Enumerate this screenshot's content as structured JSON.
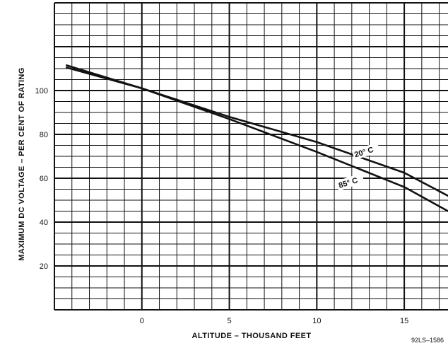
{
  "chart_data": {
    "type": "line",
    "title": "",
    "xlabel": "ALTITUDE – THOUSAND FEET",
    "ylabel": "MAXIMUM DC VOLTAGE – PER CENT OF RATING",
    "xlim": [
      -5,
      17.5
    ],
    "ylim": [
      0,
      140
    ],
    "x_major_ticks": [
      0,
      5,
      10,
      15
    ],
    "y_major_ticks": [
      20,
      40,
      60,
      80,
      100
    ],
    "x_minor_step": 1,
    "y_minor_step": 5,
    "grid": true,
    "legend": "none",
    "series": [
      {
        "name": "20° C",
        "x": [
          -4.3,
          0,
          5,
          10,
          15,
          17.5
        ],
        "values": [
          111.5,
          101,
          88,
          76.5,
          62.5,
          52
        ]
      },
      {
        "name": "85° C",
        "x": [
          -4.3,
          0,
          5,
          10,
          15,
          17.5
        ],
        "values": [
          110.5,
          101,
          87,
          72,
          56,
          45
        ]
      }
    ],
    "annotations": [
      {
        "text": "20° C",
        "x": 12.2,
        "y": 69.5
      },
      {
        "text": "85° C",
        "x": 11.3,
        "y": 55.5
      }
    ],
    "figure_id": "92LS–1586"
  }
}
